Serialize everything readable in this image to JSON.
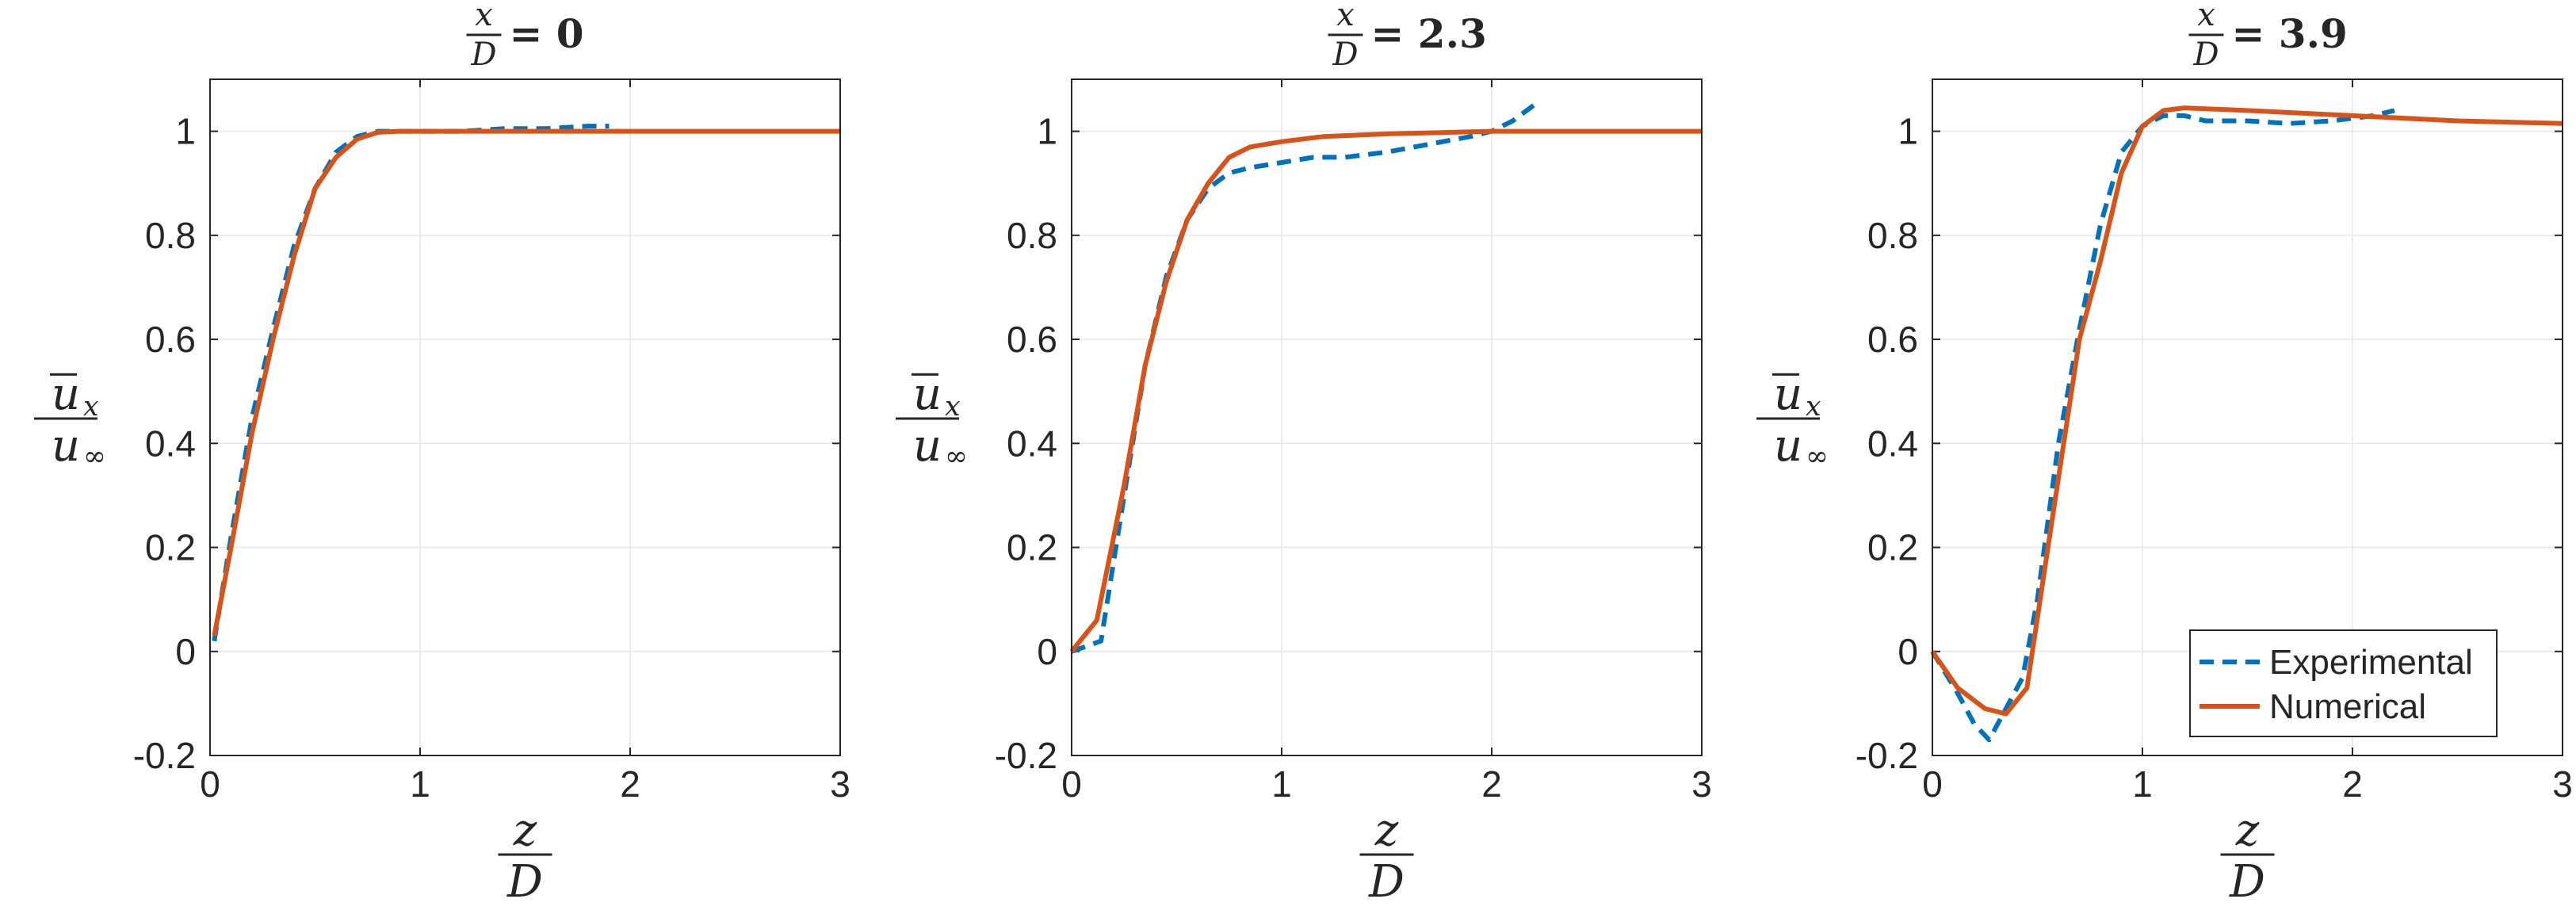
{
  "colors": {
    "experimental": "#0072BD",
    "numerical": "#D95319",
    "axis": "#262626",
    "grid": "#e6e6e6",
    "background": "#ffffff"
  },
  "axes_common": {
    "xlim": [
      0,
      3
    ],
    "ylim": [
      -0.2,
      1.1
    ],
    "xticks": [
      "0",
      "1",
      "2",
      "3"
    ],
    "yticks": [
      "-0.2",
      "0",
      "0.2",
      "0.4",
      "0.6",
      "0.8",
      "1"
    ],
    "xlabel": {
      "num": "z",
      "den": "D"
    },
    "ylabel": {
      "num": "u",
      "num_sub": "x",
      "den": "u",
      "den_sub": "∞"
    },
    "title_lhs": {
      "num": "x",
      "den": "D"
    }
  },
  "legend": {
    "placement": "bottom-right of third panel",
    "entries": [
      "Experimental",
      "Numerical"
    ]
  },
  "chart_data": [
    {
      "type": "line",
      "title": "x/D = 0",
      "title_value": "= 0",
      "xlabel": "z/D",
      "ylabel": "ū_x / u_∞",
      "xlim": [
        0,
        3
      ],
      "ylim": [
        -0.2,
        1.1
      ],
      "series": [
        {
          "name": "Experimental",
          "style": "dashed",
          "x": [
            0.02,
            0.1,
            0.2,
            0.3,
            0.4,
            0.5,
            0.6,
            0.7,
            0.8,
            0.9,
            1.0,
            1.2,
            1.4,
            1.6,
            1.8,
            1.9
          ],
          "y": [
            0.02,
            0.22,
            0.45,
            0.62,
            0.78,
            0.89,
            0.96,
            0.99,
            1.0,
            1.0,
            1.0,
            1.0,
            1.005,
            1.005,
            1.01,
            1.01
          ]
        },
        {
          "name": "Numerical",
          "style": "solid",
          "x": [
            0.02,
            0.1,
            0.2,
            0.3,
            0.4,
            0.5,
            0.6,
            0.7,
            0.8,
            0.9,
            1.0,
            1.5,
            2.0,
            2.5,
            3.0
          ],
          "y": [
            0.03,
            0.2,
            0.42,
            0.6,
            0.76,
            0.89,
            0.95,
            0.985,
            0.998,
            1.0,
            1.0,
            1.0,
            1.0,
            1.0,
            1.0
          ]
        }
      ]
    },
    {
      "type": "line",
      "title": "x/D = 2.3",
      "title_value": "= 2.3",
      "xlabel": "z/D",
      "ylabel": "ū_x / u_∞",
      "xlim": [
        0,
        3
      ],
      "ylim": [
        -0.2,
        1.1
      ],
      "series": [
        {
          "name": "Experimental",
          "style": "dashed",
          "x": [
            0.0,
            0.14,
            0.25,
            0.35,
            0.45,
            0.55,
            0.65,
            0.75,
            0.85,
            1.0,
            1.15,
            1.3,
            1.5,
            1.7,
            1.9,
            2.0,
            2.1,
            2.2
          ],
          "y": [
            0.0,
            0.02,
            0.3,
            0.55,
            0.72,
            0.83,
            0.89,
            0.92,
            0.93,
            0.94,
            0.95,
            0.95,
            0.96,
            0.975,
            0.99,
            1.0,
            1.02,
            1.05
          ]
        },
        {
          "name": "Numerical",
          "style": "solid",
          "x": [
            0.0,
            0.12,
            0.25,
            0.35,
            0.45,
            0.55,
            0.65,
            0.75,
            0.85,
            1.0,
            1.2,
            1.5,
            2.0,
            2.5,
            3.0
          ],
          "y": [
            0.0,
            0.06,
            0.32,
            0.55,
            0.71,
            0.83,
            0.9,
            0.95,
            0.97,
            0.98,
            0.99,
            0.995,
            1.0,
            1.0,
            1.0
          ]
        }
      ]
    },
    {
      "type": "line",
      "title": "x/D = 3.9",
      "title_value": "= 3.9",
      "xlabel": "z/D",
      "ylabel": "ū_x / u_∞",
      "xlim": [
        0,
        3
      ],
      "ylim": [
        -0.2,
        1.1
      ],
      "series": [
        {
          "name": "Experimental",
          "style": "dashed",
          "x": [
            0.0,
            0.12,
            0.2,
            0.27,
            0.35,
            0.43,
            0.5,
            0.6,
            0.7,
            0.8,
            0.9,
            1.0,
            1.1,
            1.2,
            1.3,
            1.5,
            1.7,
            1.9,
            2.1,
            2.2
          ],
          "y": [
            0.0,
            -0.08,
            -0.14,
            -0.17,
            -0.11,
            -0.05,
            0.1,
            0.4,
            0.62,
            0.82,
            0.96,
            1.01,
            1.03,
            1.03,
            1.02,
            1.02,
            1.015,
            1.02,
            1.03,
            1.04
          ]
        },
        {
          "name": "Numerical",
          "style": "solid",
          "x": [
            0.0,
            0.12,
            0.25,
            0.35,
            0.45,
            0.55,
            0.7,
            0.8,
            0.9,
            1.0,
            1.1,
            1.2,
            1.5,
            2.0,
            2.5,
            3.0
          ],
          "y": [
            0.0,
            -0.07,
            -0.11,
            -0.12,
            -0.07,
            0.2,
            0.6,
            0.75,
            0.92,
            1.01,
            1.04,
            1.045,
            1.04,
            1.03,
            1.02,
            1.015
          ]
        }
      ]
    }
  ]
}
